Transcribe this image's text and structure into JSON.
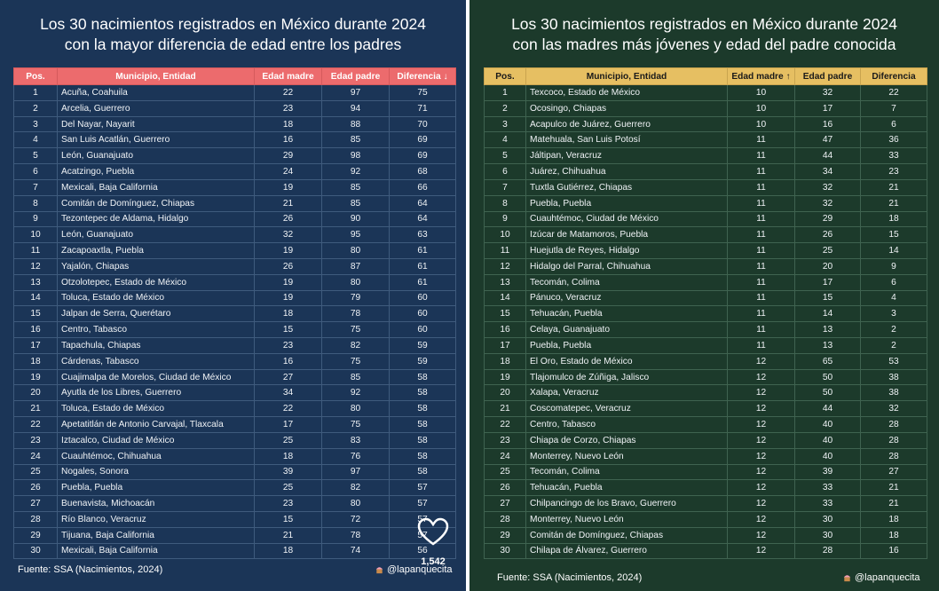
{
  "left": {
    "title_line1": "Los 30 nacimientos registrados en México durante 2024",
    "title_line2": "con la mayor diferencia de edad entre los padres",
    "headers": [
      "Pos.",
      "Municipio, Entidad",
      "Edad madre",
      "Edad padre",
      "Diferencia ↓"
    ],
    "rows": [
      [
        "1",
        "Acuña, Coahuila",
        "22",
        "97",
        "75"
      ],
      [
        "2",
        "Arcelia, Guerrero",
        "23",
        "94",
        "71"
      ],
      [
        "3",
        "Del Nayar, Nayarit",
        "18",
        "88",
        "70"
      ],
      [
        "4",
        "San Luis Acatlán, Guerrero",
        "16",
        "85",
        "69"
      ],
      [
        "5",
        "León, Guanajuato",
        "29",
        "98",
        "69"
      ],
      [
        "6",
        "Acatzingo, Puebla",
        "24",
        "92",
        "68"
      ],
      [
        "7",
        "Mexicali, Baja California",
        "19",
        "85",
        "66"
      ],
      [
        "8",
        "Comitán de Domínguez, Chiapas",
        "21",
        "85",
        "64"
      ],
      [
        "9",
        "Tezontepec de Aldama, Hidalgo",
        "26",
        "90",
        "64"
      ],
      [
        "10",
        "León, Guanajuato",
        "32",
        "95",
        "63"
      ],
      [
        "11",
        "Zacapoaxtla, Puebla",
        "19",
        "80",
        "61"
      ],
      [
        "12",
        "Yajalón, Chiapas",
        "26",
        "87",
        "61"
      ],
      [
        "13",
        "Otzolotepec, Estado de México",
        "19",
        "80",
        "61"
      ],
      [
        "14",
        "Toluca, Estado de México",
        "19",
        "79",
        "60"
      ],
      [
        "15",
        "Jalpan de Serra, Querétaro",
        "18",
        "78",
        "60"
      ],
      [
        "16",
        "Centro, Tabasco",
        "15",
        "75",
        "60"
      ],
      [
        "17",
        "Tapachula, Chiapas",
        "23",
        "82",
        "59"
      ],
      [
        "18",
        "Cárdenas, Tabasco",
        "16",
        "75",
        "59"
      ],
      [
        "19",
        "Cuajimalpa de Morelos, Ciudad de México",
        "27",
        "85",
        "58"
      ],
      [
        "20",
        "Ayutla de los Libres, Guerrero",
        "34",
        "92",
        "58"
      ],
      [
        "21",
        "Toluca, Estado de México",
        "22",
        "80",
        "58"
      ],
      [
        "22",
        "Apetatitlán de Antonio Carvajal, Tlaxcala",
        "17",
        "75",
        "58"
      ],
      [
        "23",
        "Iztacalco, Ciudad de México",
        "25",
        "83",
        "58"
      ],
      [
        "24",
        "Cuauhtémoc, Chihuahua",
        "18",
        "76",
        "58"
      ],
      [
        "25",
        "Nogales, Sonora",
        "39",
        "97",
        "58"
      ],
      [
        "26",
        "Puebla, Puebla",
        "25",
        "82",
        "57"
      ],
      [
        "27",
        "Buenavista, Michoacán",
        "23",
        "80",
        "57"
      ],
      [
        "28",
        "Río Blanco, Veracruz",
        "15",
        "72",
        "57"
      ],
      [
        "29",
        "Tijuana, Baja California",
        "21",
        "78",
        "57"
      ],
      [
        "30",
        "Mexicali, Baja California",
        "18",
        "74",
        "56"
      ]
    ],
    "source": "Fuente: SSA (Nacimientos, 2024)",
    "handle": "@lapanquecita",
    "like_count": "1,542"
  },
  "right": {
    "title_line1": "Los 30 nacimientos registrados en México durante 2024",
    "title_line2": "con las madres más jóvenes y edad del padre conocida",
    "headers": [
      "Pos.",
      "Municipio, Entidad",
      "Edad madre ↑",
      "Edad padre",
      "Diferencia"
    ],
    "rows": [
      [
        "1",
        "Texcoco, Estado de México",
        "10",
        "32",
        "22"
      ],
      [
        "2",
        "Ocosingo, Chiapas",
        "10",
        "17",
        "7"
      ],
      [
        "3",
        "Acapulco de Juárez, Guerrero",
        "10",
        "16",
        "6"
      ],
      [
        "4",
        "Matehuala, San Luis Potosí",
        "11",
        "47",
        "36"
      ],
      [
        "5",
        "Jáltipan, Veracruz",
        "11",
        "44",
        "33"
      ],
      [
        "6",
        "Juárez, Chihuahua",
        "11",
        "34",
        "23"
      ],
      [
        "7",
        "Tuxtla Gutiérrez, Chiapas",
        "11",
        "32",
        "21"
      ],
      [
        "8",
        "Puebla, Puebla",
        "11",
        "32",
        "21"
      ],
      [
        "9",
        "Cuauhtémoc, Ciudad de México",
        "11",
        "29",
        "18"
      ],
      [
        "10",
        "Izúcar de Matamoros, Puebla",
        "11",
        "26",
        "15"
      ],
      [
        "11",
        "Huejutla de Reyes, Hidalgo",
        "11",
        "25",
        "14"
      ],
      [
        "12",
        "Hidalgo del Parral, Chihuahua",
        "11",
        "20",
        "9"
      ],
      [
        "13",
        "Tecomán, Colima",
        "11",
        "17",
        "6"
      ],
      [
        "14",
        "Pánuco, Veracruz",
        "11",
        "15",
        "4"
      ],
      [
        "15",
        "Tehuacán, Puebla",
        "11",
        "14",
        "3"
      ],
      [
        "16",
        "Celaya, Guanajuato",
        "11",
        "13",
        "2"
      ],
      [
        "17",
        "Puebla, Puebla",
        "11",
        "13",
        "2"
      ],
      [
        "18",
        "El Oro, Estado de México",
        "12",
        "65",
        "53"
      ],
      [
        "19",
        "Tlajomulco de Zúñiga, Jalisco",
        "12",
        "50",
        "38"
      ],
      [
        "20",
        "Xalapa, Veracruz",
        "12",
        "50",
        "38"
      ],
      [
        "21",
        "Coscomatepec, Veracruz",
        "12",
        "44",
        "32"
      ],
      [
        "22",
        "Centro, Tabasco",
        "12",
        "40",
        "28"
      ],
      [
        "23",
        "Chiapa de Corzo, Chiapas",
        "12",
        "40",
        "28"
      ],
      [
        "24",
        "Monterrey, Nuevo León",
        "12",
        "40",
        "28"
      ],
      [
        "25",
        "Tecomán, Colima",
        "12",
        "39",
        "27"
      ],
      [
        "26",
        "Tehuacán, Puebla",
        "12",
        "33",
        "21"
      ],
      [
        "27",
        "Chilpancingo de los Bravo, Guerrero",
        "12",
        "33",
        "21"
      ],
      [
        "28",
        "Monterrey, Nuevo León",
        "12",
        "30",
        "18"
      ],
      [
        "29",
        "Comitán de Domínguez, Chiapas",
        "12",
        "30",
        "18"
      ],
      [
        "30",
        "Chilapa de Álvarez, Guerrero",
        "12",
        "28",
        "16"
      ]
    ],
    "source": "Fuente: SSA (Nacimientos, 2024)",
    "handle": "@lapanquecita"
  }
}
